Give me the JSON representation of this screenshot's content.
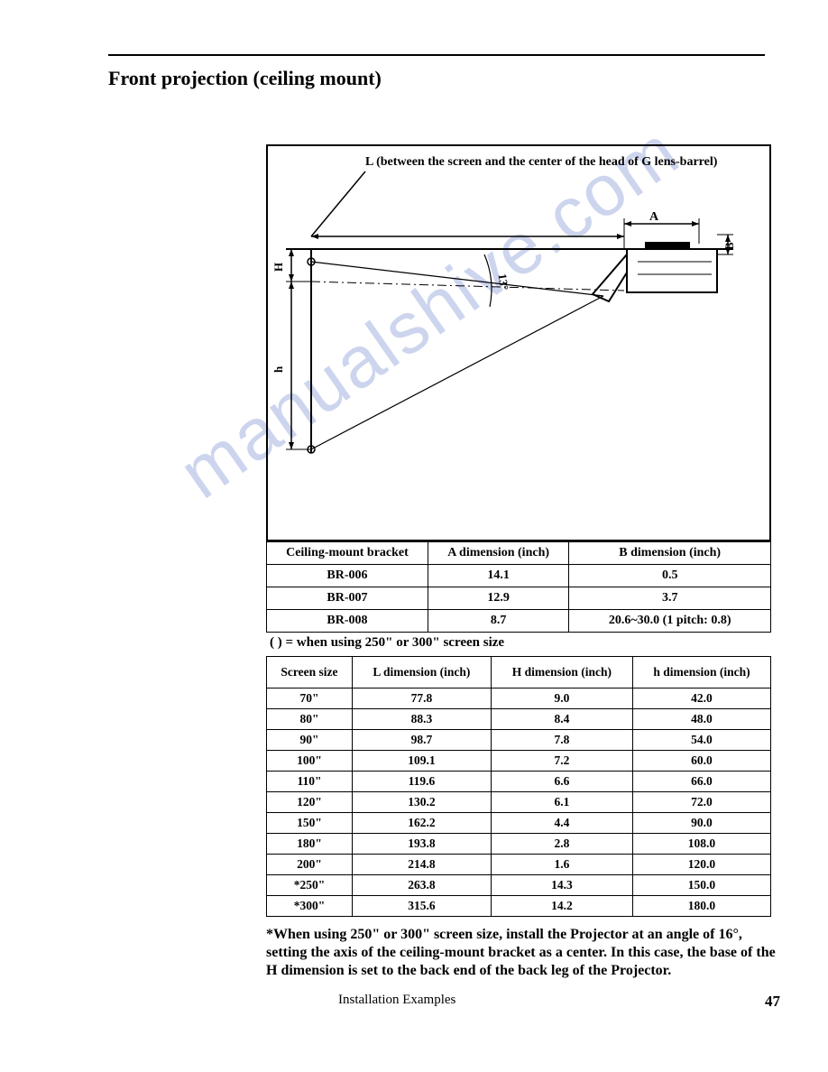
{
  "title": "Front projection (ceiling mount)",
  "diagram": {
    "l_label": "L (between the screen and the center of the head of G lens-barrel)",
    "angle_label": "13°",
    "A_label": "A",
    "B_label": "B",
    "H_label": "H",
    "h_label": "h",
    "stroke_color": "#000000",
    "line_width": 1.5
  },
  "bracket_table": {
    "columns": [
      "Ceiling-mount bracket",
      "A dimension (inch)",
      "B dimension (inch)"
    ],
    "rows": [
      [
        "BR-006",
        "14.1",
        "0.5"
      ],
      [
        "BR-007",
        "12.9",
        "3.7"
      ],
      [
        "BR-008",
        "8.7",
        "20.6~30.0 (1 pitch: 0.8)"
      ]
    ],
    "col_widths": [
      "32%",
      "28%",
      "40%"
    ]
  },
  "bracket_note": "( ) = when using 250\" or 300\" screen size",
  "dim_table": {
    "columns": [
      "Screen size",
      "L dimension (inch)",
      "H dimension (inch)",
      "h dimension (inch)"
    ],
    "rows": [
      [
        "70\"",
        "77.8",
        "9.0",
        "42.0"
      ],
      [
        "80\"",
        "88.3",
        "8.4",
        "48.0"
      ],
      [
        "90\"",
        "98.7",
        "7.8",
        "54.0"
      ],
      [
        "100\"",
        "109.1",
        "7.2",
        "60.0"
      ],
      [
        "110\"",
        "119.6",
        "6.6",
        "66.0"
      ],
      [
        "120\"",
        "130.2",
        "6.1",
        "72.0"
      ],
      [
        "150\"",
        "162.2",
        "4.4",
        "90.0"
      ],
      [
        "180\"",
        "193.8",
        "2.8",
        "108.0"
      ],
      [
        "200\"",
        "214.8",
        "1.6",
        "120.0"
      ],
      [
        "*250\"",
        "263.8",
        "14.3",
        "150.0"
      ],
      [
        "*300\"",
        "315.6",
        "14.2",
        "180.0"
      ]
    ],
    "col_widths": [
      "25%",
      "25%",
      "25%",
      "25%"
    ]
  },
  "footnote": "*When using 250\" or 300\" screen size, install the Projector at an angle of 16°, setting the axis of the ceiling-mount bracket as a center. In this case, the base of the H dimension is set to the back end of the back leg of the Projector.",
  "footer": {
    "section": "Installation Examples",
    "page": "47"
  },
  "watermark": {
    "text": "manualshive.com",
    "color": "#b8c4e8"
  }
}
